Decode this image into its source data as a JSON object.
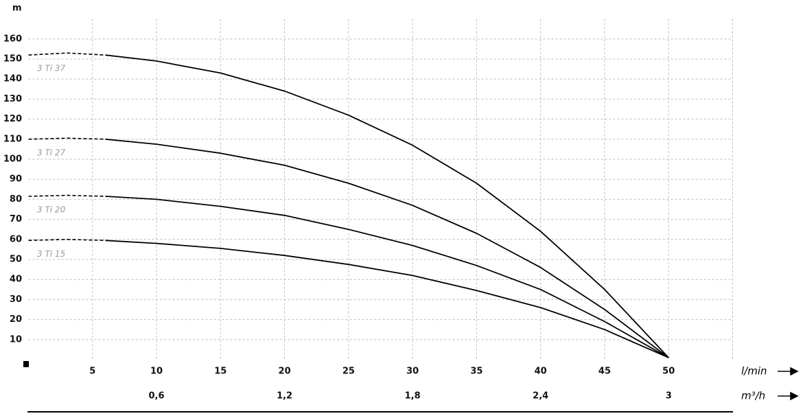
{
  "chart_data": {
    "type": "line",
    "x_label": "l/min",
    "x2_label": "m³/h",
    "y_label": "m",
    "xlim": [
      0,
      55
    ],
    "xticks": [
      5,
      10,
      15,
      20,
      25,
      30,
      35,
      40,
      45,
      50
    ],
    "x2lim": [
      0,
      3.3
    ],
    "x2ticks": [
      {
        "value": 0.6,
        "label": "0,6"
      },
      {
        "value": 1.2,
        "label": "1,2"
      },
      {
        "value": 1.8,
        "label": "1,8"
      },
      {
        "value": 2.4,
        "label": "2,4"
      },
      3
    ],
    "ylim": [
      0,
      170
    ],
    "yticks": [
      10,
      20,
      30,
      40,
      50,
      60,
      70,
      80,
      90,
      100,
      110,
      120,
      130,
      140,
      150,
      160
    ],
    "grid": true,
    "series": [
      {
        "name": "3 Ti 37",
        "color": "#000000",
        "dashed_x": [
          0,
          3,
          6
        ],
        "dashed_values": [
          152,
          153,
          152
        ],
        "x": [
          6,
          10,
          15,
          20,
          25,
          30,
          35,
          40,
          45,
          50
        ],
        "values": [
          152,
          149,
          143,
          134,
          122,
          107,
          88,
          64,
          35,
          1
        ]
      },
      {
        "name": "3 Ti 27",
        "color": "#000000",
        "dashed_x": [
          0,
          3,
          6
        ],
        "dashed_values": [
          110,
          110.5,
          110
        ],
        "x": [
          6,
          10,
          15,
          20,
          25,
          30,
          35,
          40,
          45,
          50
        ],
        "values": [
          110,
          107.5,
          103,
          97,
          88,
          77,
          63,
          46,
          25,
          1
        ]
      },
      {
        "name": "3 Ti 20",
        "color": "#000000",
        "dashed_x": [
          0,
          3,
          6
        ],
        "dashed_values": [
          81.5,
          82,
          81.5
        ],
        "x": [
          6,
          10,
          15,
          20,
          25,
          30,
          35,
          40,
          45,
          50
        ],
        "values": [
          81.5,
          80,
          76.5,
          72,
          65,
          57,
          47,
          35,
          19,
          1
        ]
      },
      {
        "name": "3 Ti 15",
        "color": "#000000",
        "dashed_x": [
          0,
          3,
          6
        ],
        "dashed_values": [
          59.5,
          60,
          59.5
        ],
        "x": [
          6,
          10,
          15,
          20,
          25,
          30,
          35,
          40,
          45,
          50
        ],
        "values": [
          59.5,
          58,
          55.5,
          52,
          47.5,
          42,
          34.5,
          26,
          15,
          1
        ]
      }
    ]
  }
}
